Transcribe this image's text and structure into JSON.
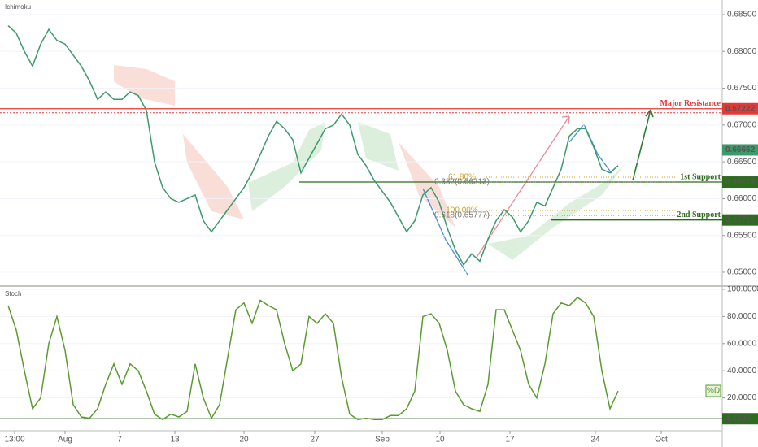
{
  "chart_data": [
    {
      "type": "line",
      "title": "Ichimoku",
      "color": "#3d9a6a",
      "x": [
        1,
        2,
        3,
        4,
        5,
        6,
        7,
        8,
        9,
        10,
        11,
        12,
        13,
        14,
        15,
        16,
        17,
        18,
        19,
        20,
        21,
        22,
        23,
        24,
        25,
        26,
        27,
        28,
        29,
        30,
        31,
        32,
        33,
        34,
        35,
        36,
        37,
        38,
        39,
        40,
        41,
        42,
        43,
        44,
        45,
        46,
        47,
        48,
        49,
        50,
        51,
        52,
        53,
        54,
        55,
        56,
        57,
        58,
        59,
        60,
        61,
        62,
        63,
        64,
        65,
        66,
        67,
        68,
        69,
        70,
        71,
        72,
        73,
        74,
        75,
        76
      ],
      "values": [
        0.6835,
        0.6825,
        0.68,
        0.678,
        0.681,
        0.683,
        0.6815,
        0.681,
        0.6795,
        0.678,
        0.676,
        0.6735,
        0.6745,
        0.6735,
        0.6735,
        0.6745,
        0.674,
        0.672,
        0.665,
        0.6615,
        0.66,
        0.6595,
        0.66,
        0.6605,
        0.657,
        0.6555,
        0.657,
        0.6585,
        0.66,
        0.6615,
        0.6635,
        0.666,
        0.6685,
        0.6705,
        0.6695,
        0.668,
        0.6635,
        0.6655,
        0.6675,
        0.6695,
        0.67,
        0.6715,
        0.67,
        0.666,
        0.6645,
        0.6625,
        0.661,
        0.6595,
        0.6575,
        0.6555,
        0.657,
        0.6605,
        0.6615,
        0.6595,
        0.656,
        0.653,
        0.651,
        0.6525,
        0.6515,
        0.6545,
        0.657,
        0.6585,
        0.6575,
        0.6555,
        0.657,
        0.6595,
        0.659,
        0.6615,
        0.664,
        0.6685,
        0.6695,
        0.6695,
        0.667,
        0.664,
        0.6635,
        0.6645
      ],
      "xlim": [
        0,
        88.8
      ],
      "ylim": [
        0.64834,
        0.68699
      ],
      "yticks": [
        {
          "value": 0.685,
          "label": "0.68500"
        },
        {
          "value": 0.68,
          "label": "0.68000"
        },
        {
          "value": 0.675,
          "label": "0.67500"
        },
        {
          "value": 0.67,
          "label": "0.67000"
        },
        {
          "value": 0.665,
          "label": "0.66500"
        },
        {
          "value": 0.66,
          "label": "0.66000"
        },
        {
          "value": 0.655,
          "label": "0.65500"
        },
        {
          "value": 0.65,
          "label": "0.65000"
        }
      ],
      "levels": [
        {
          "label": "Major Resistance",
          "value": 0.67222,
          "value_label": "0.67222",
          "color": "#e53935"
        },
        {
          "value": 0.66662,
          "value_label": "0.66662",
          "color": "#3d9a6a"
        },
        {
          "label": "1st Support",
          "value": 0.66225,
          "value_label": "0.66225",
          "color": "#2e6b1f"
        },
        {
          "label": "2nd Support",
          "value": 0.6571,
          "value_label": "0.65710",
          "color": "#2e6b1f"
        }
      ],
      "annotations": [
        "61.80%",
        "0.382(0.66213)",
        "100.00%",
        "0.618(0.65777)"
      ]
    },
    {
      "type": "line",
      "title": "Stoch",
      "legend": "%D",
      "color": "#5b9b2f",
      "x": [
        1,
        2,
        3,
        4,
        5,
        6,
        7,
        8,
        9,
        10,
        11,
        12,
        13,
        14,
        15,
        16,
        17,
        18,
        19,
        20,
        21,
        22,
        23,
        24,
        25,
        26,
        27,
        28,
        29,
        30,
        31,
        32,
        33,
        34,
        35,
        36,
        37,
        38,
        39,
        40,
        41,
        42,
        43,
        44,
        45,
        46,
        47,
        48,
        49,
        50,
        51,
        52,
        53,
        54,
        55,
        56,
        57,
        58,
        59,
        60,
        61,
        62,
        63,
        64,
        65,
        66,
        67,
        68,
        69,
        70,
        71,
        72,
        73,
        74,
        75,
        76
      ],
      "values": [
        88,
        70,
        40,
        12,
        20,
        60,
        80,
        55,
        15,
        6,
        5,
        12,
        30,
        45,
        30,
        45,
        40,
        25,
        8,
        4,
        8,
        6,
        10,
        45,
        20,
        5,
        15,
        50,
        85,
        90,
        75,
        92,
        88,
        85,
        60,
        40,
        45,
        80,
        75,
        82,
        75,
        35,
        8,
        4,
        5,
        4,
        4,
        7,
        7,
        12,
        25,
        80,
        82,
        75,
        55,
        25,
        15,
        12,
        10,
        30,
        85,
        85,
        70,
        55,
        30,
        20,
        45,
        82,
        90,
        88,
        94,
        90,
        80,
        40,
        12,
        25
      ],
      "xlim": [
        0,
        88.8
      ],
      "ylim": [
        -3,
        101.2
      ],
      "yticks": [
        {
          "value": 100,
          "label": "100.0000"
        },
        {
          "value": 80,
          "label": "80.0000"
        },
        {
          "value": 60,
          "label": "60.0000"
        },
        {
          "value": 40,
          "label": "40.0000"
        },
        {
          "value": 20,
          "label": "20.0000"
        }
      ],
      "levels": [
        {
          "value": 4.644,
          "value_label": "4.6440",
          "color": "#2e6b1f"
        }
      ],
      "xticks": [
        {
          "value": 1.8,
          "label": "13:00"
        },
        {
          "value": 8,
          "label": "Aug"
        },
        {
          "value": 14.7,
          "label": "7"
        },
        {
          "value": 21.5,
          "label": "13"
        },
        {
          "value": 30,
          "label": "20"
        },
        {
          "value": 38.7,
          "label": "27"
        },
        {
          "value": 47,
          "label": "Sep"
        },
        {
          "value": 54.1,
          "label": "10"
        },
        {
          "value": 62.7,
          "label": "17"
        },
        {
          "value": 73.2,
          "label": "24"
        },
        {
          "value": 81.3,
          "label": "Oct"
        }
      ]
    }
  ]
}
